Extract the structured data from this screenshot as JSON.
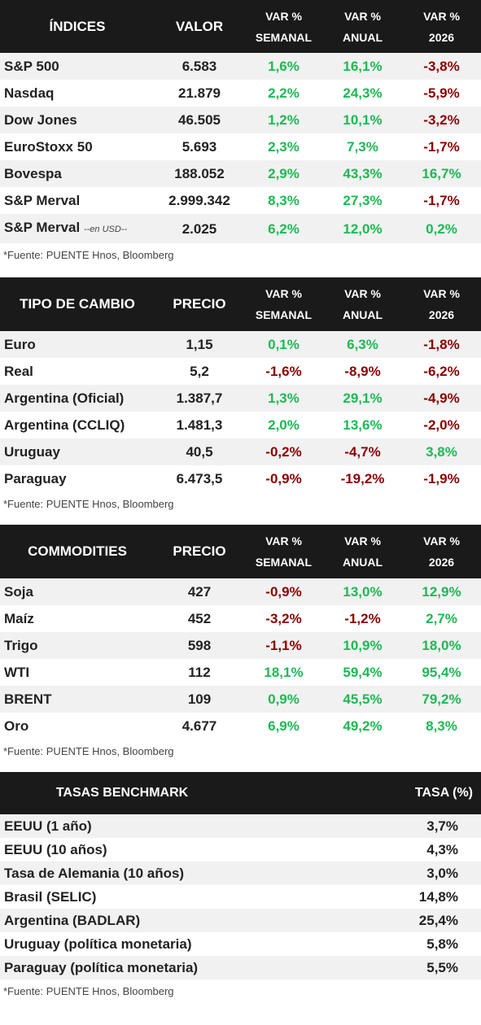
{
  "indices": {
    "headers": [
      "ÍNDICES",
      "VALOR",
      "VAR %",
      "SEMANAL",
      "VAR %",
      "ANUAL",
      "VAR %",
      "2026"
    ],
    "rows": [
      {
        "name": "S&P 500",
        "value": "6.583",
        "w": "1,6%",
        "a": "16,1%",
        "y": "-3,8%",
        "wc": "pos",
        "ac": "pos",
        "yc": "neg"
      },
      {
        "name": "Nasdaq",
        "value": "21.879",
        "w": "2,2%",
        "a": "24,3%",
        "y": "-5,9%",
        "wc": "pos",
        "ac": "pos",
        "yc": "neg"
      },
      {
        "name": "Dow Jones",
        "value": "46.505",
        "w": "1,2%",
        "a": "10,1%",
        "y": "-3,2%",
        "wc": "pos",
        "ac": "pos",
        "yc": "neg"
      },
      {
        "name": "EuroStoxx 50",
        "value": "5.693",
        "w": "2,3%",
        "a": "7,3%",
        "y": "-1,7%",
        "wc": "pos",
        "ac": "pos",
        "yc": "neg"
      },
      {
        "name": "Bovespa",
        "value": "188.052",
        "w": "2,9%",
        "a": "43,3%",
        "y": "16,7%",
        "wc": "pos",
        "ac": "pos",
        "yc": "pos"
      },
      {
        "name": "S&P Merval",
        "value": "2.999.342",
        "w": "8,3%",
        "a": "27,3%",
        "y": "-1,7%",
        "wc": "pos",
        "ac": "pos",
        "yc": "neg"
      },
      {
        "name": "S&P Merval",
        "note": "--en USD--",
        "value": "2.025",
        "w": "6,2%",
        "a": "12,0%",
        "y": "0,2%",
        "wc": "pos",
        "ac": "pos",
        "yc": "pos"
      }
    ],
    "source": "*Fuente: PUENTE Hnos, Bloomberg"
  },
  "fx": {
    "headers": [
      "TIPO DE CAMBIO",
      "PRECIO",
      "VAR %",
      "SEMANAL",
      "VAR %",
      "ANUAL",
      "VAR %",
      "2026"
    ],
    "rows": [
      {
        "name": "Euro",
        "value": "1,15",
        "w": "0,1%",
        "a": "6,3%",
        "y": "-1,8%",
        "wc": "pos",
        "ac": "pos",
        "yc": "neg"
      },
      {
        "name": "Real",
        "value": "5,2",
        "w": "-1,6%",
        "a": "-8,9%",
        "y": "-6,2%",
        "wc": "neg",
        "ac": "neg",
        "yc": "neg"
      },
      {
        "name": "Argentina (Oficial)",
        "value": "1.387,7",
        "w": "1,3%",
        "a": "29,1%",
        "y": "-4,9%",
        "wc": "pos",
        "ac": "pos",
        "yc": "neg"
      },
      {
        "name": "Argentina (CCLIQ)",
        "value": "1.481,3",
        "w": "2,0%",
        "a": "13,6%",
        "y": "-2,0%",
        "wc": "pos",
        "ac": "pos",
        "yc": "neg"
      },
      {
        "name": "Uruguay",
        "value": "40,5",
        "w": "-0,2%",
        "a": "-4,7%",
        "y": "3,8%",
        "wc": "neg",
        "ac": "neg",
        "yc": "pos"
      },
      {
        "name": "Paraguay",
        "value": "6.473,5",
        "w": "-0,9%",
        "a": "-19,2%",
        "y": "-1,9%",
        "wc": "neg",
        "ac": "neg",
        "yc": "neg"
      }
    ],
    "source": "*Fuente: PUENTE Hnos, Bloomberg"
  },
  "commodities": {
    "headers": [
      "COMMODITIES",
      "PRECIO",
      "VAR %",
      "SEMANAL",
      "VAR %",
      "ANUAL",
      "VAR %",
      "2026"
    ],
    "rows": [
      {
        "name": "Soja",
        "value": "427",
        "w": "-0,9%",
        "a": "13,0%",
        "y": "12,9%",
        "wc": "neg",
        "ac": "pos",
        "yc": "pos"
      },
      {
        "name": "Maíz",
        "value": "452",
        "w": "-3,2%",
        "a": "-1,2%",
        "y": "2,7%",
        "wc": "neg",
        "ac": "neg",
        "yc": "pos"
      },
      {
        "name": "Trigo",
        "value": "598",
        "w": "-1,1%",
        "a": "10,9%",
        "y": "18,0%",
        "wc": "neg",
        "ac": "pos",
        "yc": "pos"
      },
      {
        "name": "WTI",
        "value": "112",
        "w": "18,1%",
        "a": "59,4%",
        "y": "95,4%",
        "wc": "pos",
        "ac": "pos",
        "yc": "pos"
      },
      {
        "name": "BRENT",
        "value": "109",
        "w": "0,9%",
        "a": "45,5%",
        "y": "79,2%",
        "wc": "pos",
        "ac": "pos",
        "yc": "pos"
      },
      {
        "name": "Oro",
        "value": "4.677",
        "w": "6,9%",
        "a": "49,2%",
        "y": "8,3%",
        "wc": "pos",
        "ac": "pos",
        "yc": "pos"
      }
    ],
    "source": "*Fuente: PUENTE Hnos, Bloomberg"
  },
  "rates": {
    "headers": [
      "TASAS BENCHMARK",
      "TASA (%)"
    ],
    "rows": [
      {
        "name": "EEUU (1 año)",
        "rate": "3,7%"
      },
      {
        "name": "EEUU (10 años)",
        "rate": "4,3%"
      },
      {
        "name": "Tasa de Alemania (10 años)",
        "rate": "3,0%"
      },
      {
        "name": "Brasil (SELIC)",
        "rate": "14,8%"
      },
      {
        "name": "Argentina (BADLAR)",
        "rate": "25,4%"
      },
      {
        "name": "Uruguay (política monetaria)",
        "rate": "5,8%"
      },
      {
        "name": "Paraguay (política monetaria)",
        "rate": "5,5%"
      }
    ],
    "source": "*Fuente: PUENTE Hnos, Bloomberg"
  },
  "colors": {
    "positive": "#1db954",
    "negative": "#8b0000",
    "header_bg": "#1a1a1a",
    "stripe": "#f1f1f1"
  }
}
